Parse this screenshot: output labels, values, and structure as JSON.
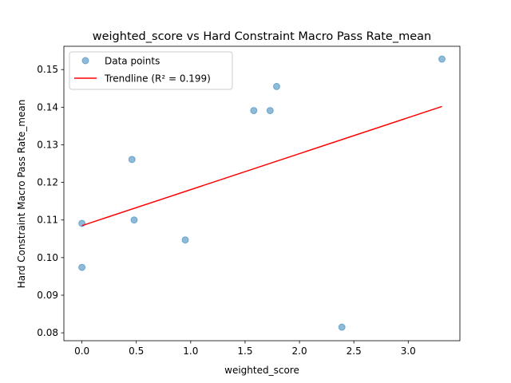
{
  "chart_data": {
    "type": "scatter",
    "title": "weighted_score vs Hard Constraint Macro Pass Rate_mean",
    "xlabel": "weighted_score",
    "ylabel": "Hard Constraint Macro Pass Rate_mean",
    "xlim": [
      -0.166,
      3.475
    ],
    "ylim": [
      0.0779,
      0.1562
    ],
    "xticks": [
      0.0,
      0.5,
      1.0,
      1.5,
      2.0,
      2.5,
      3.0
    ],
    "xtick_labels": [
      "0.0",
      "0.5",
      "1.0",
      "1.5",
      "2.0",
      "2.5",
      "3.0"
    ],
    "yticks": [
      0.08,
      0.09,
      0.1,
      0.11,
      0.12,
      0.13,
      0.14,
      0.15
    ],
    "ytick_labels": [
      "0.08",
      "0.09",
      "0.10",
      "0.11",
      "0.12",
      "0.13",
      "0.14",
      "0.15"
    ],
    "grid": false,
    "legend_position": "top-left",
    "series": [
      {
        "name": "Data points",
        "kind": "scatter",
        "color": "#1f77b4",
        "points": [
          {
            "x": 0.0,
            "y": 0.1091
          },
          {
            "x": 0.0,
            "y": 0.0974
          },
          {
            "x": 0.46,
            "y": 0.1261
          },
          {
            "x": 0.48,
            "y": 0.11
          },
          {
            "x": 0.95,
            "y": 0.1047
          },
          {
            "x": 1.58,
            "y": 0.1391
          },
          {
            "x": 1.73,
            "y": 0.1391
          },
          {
            "x": 1.79,
            "y": 0.1455
          },
          {
            "x": 2.39,
            "y": 0.0815
          },
          {
            "x": 3.31,
            "y": 0.1528
          }
        ]
      },
      {
        "name": "Trendline (R² = 0.199)",
        "kind": "line",
        "color": "#ff0000",
        "points": [
          {
            "x": 0.0,
            "y": 0.1085
          },
          {
            "x": 3.31,
            "y": 0.1402
          }
        ]
      }
    ]
  }
}
